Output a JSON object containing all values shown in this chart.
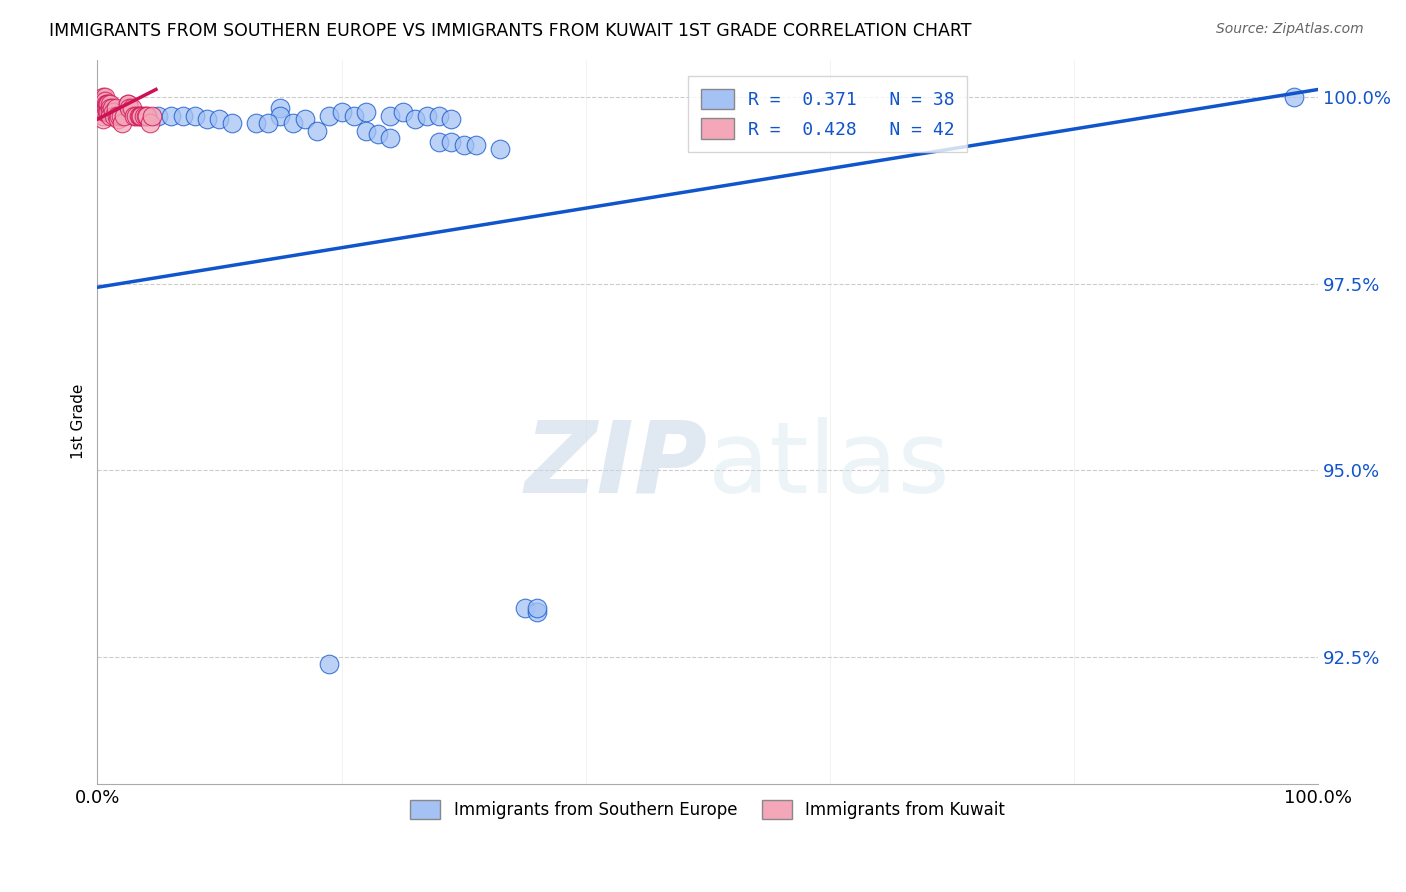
{
  "title": "IMMIGRANTS FROM SOUTHERN EUROPE VS IMMIGRANTS FROM KUWAIT 1ST GRADE CORRELATION CHART",
  "source": "Source: ZipAtlas.com",
  "ylabel": "1st Grade",
  "xlim": [
    0.0,
    1.0
  ],
  "ylim": [
    0.908,
    1.005
  ],
  "yticks": [
    0.925,
    0.95,
    0.975,
    1.0
  ],
  "ytick_labels": [
    "92.5%",
    "95.0%",
    "97.5%",
    "100.0%"
  ],
  "xticks": [
    0.0,
    0.2,
    0.4,
    0.6,
    0.8,
    1.0
  ],
  "xtick_labels": [
    "0.0%",
    "",
    "",
    "",
    "",
    "100.0%"
  ],
  "legend_r1": "R =  0.371",
  "legend_n1": "N = 38",
  "legend_r2": "R =  0.428",
  "legend_n2": "N = 42",
  "color_blue": "#a4c2f4",
  "color_pink": "#f4a7b9",
  "line_blue": "#1155cc",
  "line_pink": "#cc1155",
  "watermark_zip": "ZIP",
  "watermark_atlas": "atlas",
  "label1": "Immigrants from Southern Europe",
  "label2": "Immigrants from Kuwait",
  "blue_scatter_x": [
    0.02,
    0.05,
    0.15,
    0.15,
    0.19,
    0.2,
    0.21,
    0.22,
    0.24,
    0.25,
    0.26,
    0.27,
    0.28,
    0.29,
    0.06,
    0.07,
    0.08,
    0.09,
    0.1,
    0.11,
    0.13,
    0.14,
    0.16,
    0.17,
    0.18,
    0.22,
    0.23,
    0.24,
    0.28,
    0.29,
    0.3,
    0.31,
    0.33,
    0.35,
    0.36,
    0.36,
    0.19,
    0.98
  ],
  "blue_scatter_y": [
    0.9975,
    0.9975,
    0.9985,
    0.9975,
    0.9975,
    0.998,
    0.9975,
    0.998,
    0.9975,
    0.998,
    0.997,
    0.9975,
    0.9975,
    0.997,
    0.9975,
    0.9975,
    0.9975,
    0.997,
    0.997,
    0.9965,
    0.9965,
    0.9965,
    0.9965,
    0.997,
    0.9955,
    0.9955,
    0.995,
    0.9945,
    0.994,
    0.994,
    0.9935,
    0.9935,
    0.993,
    0.9315,
    0.931,
    0.9315,
    0.924,
    1.0
  ],
  "pink_scatter_x": [
    0.005,
    0.005,
    0.005,
    0.005,
    0.005,
    0.006,
    0.006,
    0.006,
    0.007,
    0.007,
    0.008,
    0.008,
    0.009,
    0.009,
    0.01,
    0.01,
    0.01,
    0.01,
    0.012,
    0.013,
    0.014,
    0.015,
    0.016,
    0.017,
    0.018,
    0.019,
    0.02,
    0.022,
    0.025,
    0.025,
    0.026,
    0.028,
    0.03,
    0.032,
    0.034,
    0.035,
    0.036,
    0.038,
    0.04,
    0.041,
    0.043,
    0.045
  ],
  "pink_scatter_y": [
    1.0,
    0.9995,
    0.9985,
    0.9975,
    0.997,
    1.0,
    0.9995,
    0.998,
    0.999,
    0.9985,
    0.999,
    0.998,
    0.999,
    0.998,
    0.999,
    0.9985,
    0.998,
    0.9975,
    0.9985,
    0.998,
    0.9975,
    0.9985,
    0.9975,
    0.997,
    0.9975,
    0.9975,
    0.9965,
    0.9975,
    0.999,
    0.999,
    0.9985,
    0.9985,
    0.9975,
    0.9975,
    0.9975,
    0.9975,
    0.9975,
    0.9975,
    0.9975,
    0.9975,
    0.9965,
    0.9975
  ],
  "blue_line_x": [
    0.0,
    1.0
  ],
  "blue_line_y": [
    0.9745,
    1.001
  ],
  "pink_line_x": [
    0.0,
    0.048
  ],
  "pink_line_y": [
    0.997,
    1.001
  ]
}
